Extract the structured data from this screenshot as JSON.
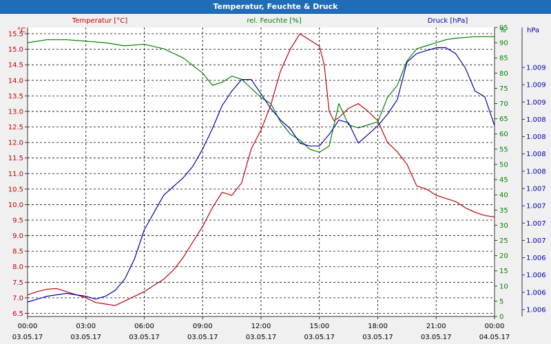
{
  "window": {
    "title": "Temperatur, Feuchte & Druck"
  },
  "chart_data": {
    "type": "line",
    "title": "Temperatur, Feuchte & Druck",
    "x_ticks": [
      {
        "time": "00:00",
        "date": "03.05.17"
      },
      {
        "time": "03:00",
        "date": "03.05.17"
      },
      {
        "time": "06:00",
        "date": "03.05.17"
      },
      {
        "time": "09:00",
        "date": "03.05.17"
      },
      {
        "time": "12:00",
        "date": "03.05.17"
      },
      {
        "time": "15:00",
        "date": "03.05.17"
      },
      {
        "time": "18:00",
        "date": "03.05.17"
      },
      {
        "time": "21:00",
        "date": "03.05.17"
      },
      {
        "time": "00:00",
        "date": "04.05.17"
      }
    ],
    "x_range_hours": [
      0,
      24
    ],
    "axes": {
      "left": {
        "title": "Temperatur [°C]",
        "unit": "°C",
        "min": 6.4,
        "max": 15.7,
        "ticks": [
          "6.5",
          "7.0",
          "7.5",
          "8.0",
          "8.5",
          "9.0",
          "9.5",
          "10.0",
          "10.5",
          "11.0",
          "11.5",
          "12.0",
          "12.5",
          "13.0",
          "13.5",
          "14.0",
          "14.5",
          "15.0",
          "15.5"
        ],
        "color": "#c00000"
      },
      "mid": {
        "title": "rel. Feuchte [%]",
        "unit": "%",
        "min": 0,
        "max": 95,
        "ticks": [
          "0",
          "5",
          "10",
          "15",
          "20",
          "25",
          "30",
          "35",
          "40",
          "45",
          "50",
          "55",
          "60",
          "65",
          "70",
          "75",
          "80",
          "85",
          "90",
          "95"
        ],
        "color": "#008000"
      },
      "right": {
        "title": "Druck [hPa]",
        "unit": "hPa",
        "min": 0,
        "max": 1,
        "ticks": [
          "1.006",
          "1.006",
          "1.006",
          "1.006",
          "1.007",
          "1.007",
          "1.007",
          "1.007",
          "1.008",
          "1.008",
          "1.008",
          "1.008",
          "1.009",
          "1.009",
          "1.009"
        ],
        "color": "#0000b0"
      }
    },
    "grid": true,
    "series": [
      {
        "name": "Temperatur [°C]",
        "axis": "left",
        "color": "#c00000",
        "points": [
          [
            0,
            7.1
          ],
          [
            0.5,
            7.2
          ],
          [
            1,
            7.28
          ],
          [
            1.5,
            7.3
          ],
          [
            2,
            7.2
          ],
          [
            2.5,
            7.1
          ],
          [
            3,
            7.0
          ],
          [
            3.5,
            6.85
          ],
          [
            4,
            6.8
          ],
          [
            4.5,
            6.75
          ],
          [
            5,
            6.9
          ],
          [
            5.5,
            7.05
          ],
          [
            6,
            7.2
          ],
          [
            6.5,
            7.4
          ],
          [
            7,
            7.6
          ],
          [
            7.5,
            7.9
          ],
          [
            8,
            8.3
          ],
          [
            8.5,
            8.8
          ],
          [
            9,
            9.3
          ],
          [
            9.5,
            9.9
          ],
          [
            10,
            10.4
          ],
          [
            10.5,
            10.3
          ],
          [
            11,
            10.7
          ],
          [
            11.5,
            11.8
          ],
          [
            12,
            12.4
          ],
          [
            12.5,
            13.2
          ],
          [
            13,
            14.3
          ],
          [
            13.5,
            15.0
          ],
          [
            14,
            15.5
          ],
          [
            14.5,
            15.3
          ],
          [
            15,
            15.1
          ],
          [
            15.25,
            14.5
          ],
          [
            15.5,
            13.0
          ],
          [
            15.75,
            12.7
          ],
          [
            16,
            12.8
          ],
          [
            16.5,
            13.1
          ],
          [
            17,
            13.25
          ],
          [
            17.5,
            13.0
          ],
          [
            18,
            12.7
          ],
          [
            18.5,
            12.0
          ],
          [
            19,
            11.7
          ],
          [
            19.5,
            11.3
          ],
          [
            20,
            10.6
          ],
          [
            20.5,
            10.5
          ],
          [
            21,
            10.3
          ],
          [
            21.5,
            10.2
          ],
          [
            22,
            10.1
          ],
          [
            22.5,
            9.9
          ],
          [
            23,
            9.75
          ],
          [
            23.5,
            9.65
          ],
          [
            24,
            9.6
          ]
        ]
      },
      {
        "name": "rel. Feuchte [%]",
        "axis": "mid",
        "color": "#008000",
        "points": [
          [
            0,
            90
          ],
          [
            1,
            91
          ],
          [
            2,
            91
          ],
          [
            3,
            90.5
          ],
          [
            4,
            90
          ],
          [
            5,
            89
          ],
          [
            6,
            89.5
          ],
          [
            7,
            88
          ],
          [
            8,
            85
          ],
          [
            9,
            80
          ],
          [
            9.5,
            76
          ],
          [
            10,
            77
          ],
          [
            10.5,
            79
          ],
          [
            11,
            78
          ],
          [
            11.5,
            75
          ],
          [
            12,
            72
          ],
          [
            12.5,
            70
          ],
          [
            13,
            64
          ],
          [
            13.5,
            60
          ],
          [
            14,
            58
          ],
          [
            14.5,
            55
          ],
          [
            15,
            54
          ],
          [
            15.5,
            56
          ],
          [
            16,
            70
          ],
          [
            16.5,
            63
          ],
          [
            17,
            62
          ],
          [
            17.5,
            63
          ],
          [
            18,
            64
          ],
          [
            18.5,
            72
          ],
          [
            19,
            76
          ],
          [
            19.5,
            84
          ],
          [
            20,
            88
          ],
          [
            20.5,
            89
          ],
          [
            21,
            90
          ],
          [
            21.5,
            91
          ],
          [
            22,
            91.5
          ],
          [
            23,
            92
          ],
          [
            24,
            92
          ]
        ]
      },
      {
        "name": "Druck [hPa]",
        "axis": "right",
        "color": "#0000b0",
        "points": [
          [
            0,
            0.05
          ],
          [
            0.5,
            0.06
          ],
          [
            1,
            0.07
          ],
          [
            1.5,
            0.075
          ],
          [
            2,
            0.08
          ],
          [
            2.5,
            0.075
          ],
          [
            3,
            0.07
          ],
          [
            3.5,
            0.06
          ],
          [
            4,
            0.07
          ],
          [
            4.5,
            0.09
          ],
          [
            5,
            0.13
          ],
          [
            5.5,
            0.2
          ],
          [
            6,
            0.3
          ],
          [
            6.5,
            0.36
          ],
          [
            7,
            0.42
          ],
          [
            7.5,
            0.45
          ],
          [
            8,
            0.48
          ],
          [
            8.5,
            0.52
          ],
          [
            9,
            0.58
          ],
          [
            9.5,
            0.65
          ],
          [
            10,
            0.73
          ],
          [
            10.5,
            0.78
          ],
          [
            11,
            0.82
          ],
          [
            11.5,
            0.82
          ],
          [
            12,
            0.77
          ],
          [
            12.5,
            0.72
          ],
          [
            13,
            0.68
          ],
          [
            13.5,
            0.65
          ],
          [
            14,
            0.6
          ],
          [
            14.5,
            0.59
          ],
          [
            15,
            0.59
          ],
          [
            15.25,
            0.61
          ],
          [
            15.5,
            0.63
          ],
          [
            16,
            0.68
          ],
          [
            16.5,
            0.67
          ],
          [
            17,
            0.6
          ],
          [
            17.5,
            0.63
          ],
          [
            18,
            0.66
          ],
          [
            18.5,
            0.7
          ],
          [
            19,
            0.75
          ],
          [
            19.5,
            0.88
          ],
          [
            20,
            0.91
          ],
          [
            20.5,
            0.92
          ],
          [
            21,
            0.93
          ],
          [
            21.5,
            0.93
          ],
          [
            22,
            0.91
          ],
          [
            22.5,
            0.86
          ],
          [
            23,
            0.78
          ],
          [
            23.5,
            0.76
          ],
          [
            24,
            0.66
          ]
        ]
      }
    ]
  }
}
